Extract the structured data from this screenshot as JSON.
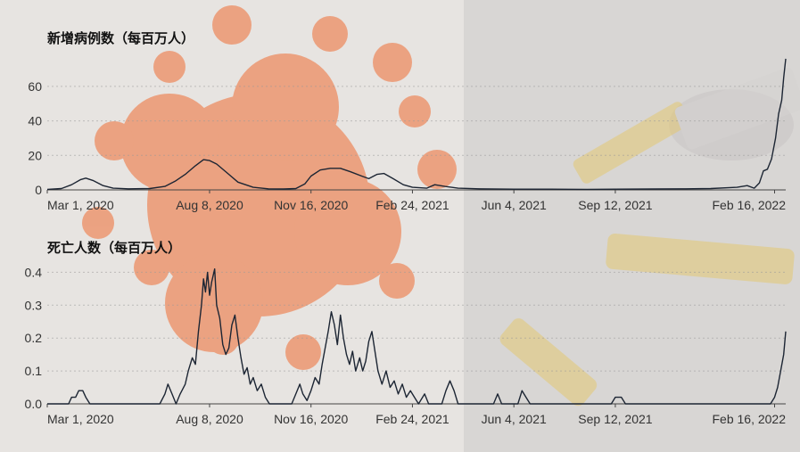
{
  "chart_data": [
    {
      "type": "line",
      "title": "新增病例数（每百万人）",
      "xlabel": "",
      "ylabel": "",
      "x_ticks": [
        "Mar 1, 2020",
        "Aug 8, 2020",
        "Nov 16, 2020",
        "Feb 24, 2021",
        "Jun 4, 2021",
        "Sep 12, 2021",
        "Feb 16, 2022"
      ],
      "y_ticks": [
        0,
        20,
        40,
        60
      ],
      "ylim": [
        0,
        78
      ],
      "grid": true,
      "x_range": [
        "2020-03-01",
        "2022-02-27"
      ],
      "series": [
        {
          "points": [
            [
              "2020-03-01",
              0.3
            ],
            [
              "2020-03-15",
              0.8
            ],
            [
              "2020-03-25",
              3.0
            ],
            [
              "2020-04-03",
              6.0
            ],
            [
              "2020-04-08",
              6.8
            ],
            [
              "2020-04-15",
              5.5
            ],
            [
              "2020-04-25",
              2.5
            ],
            [
              "2020-05-05",
              1.0
            ],
            [
              "2020-05-20",
              0.6
            ],
            [
              "2020-06-10",
              0.8
            ],
            [
              "2020-06-25",
              2.0
            ],
            [
              "2020-07-05",
              5.0
            ],
            [
              "2020-07-15",
              9.0
            ],
            [
              "2020-07-25",
              14.0
            ],
            [
              "2020-08-02",
              17.5
            ],
            [
              "2020-08-08",
              17.0
            ],
            [
              "2020-08-15",
              15.0
            ],
            [
              "2020-08-25",
              10.0
            ],
            [
              "2020-09-05",
              4.5
            ],
            [
              "2020-09-20",
              1.5
            ],
            [
              "2020-10-05",
              0.6
            ],
            [
              "2020-10-20",
              0.5
            ],
            [
              "2020-11-01",
              0.8
            ],
            [
              "2020-11-10",
              3.5
            ],
            [
              "2020-11-16",
              8.0
            ],
            [
              "2020-11-25",
              11.5
            ],
            [
              "2020-12-05",
              12.5
            ],
            [
              "2020-12-15",
              12.5
            ],
            [
              "2020-12-25",
              10.5
            ],
            [
              "2021-01-05",
              8.0
            ],
            [
              "2021-01-12",
              6.5
            ],
            [
              "2021-01-20",
              9.0
            ],
            [
              "2021-01-27",
              9.5
            ],
            [
              "2021-02-05",
              6.5
            ],
            [
              "2021-02-15",
              3.0
            ],
            [
              "2021-02-24",
              1.5
            ],
            [
              "2021-03-10",
              1.0
            ],
            [
              "2021-03-18",
              3.0
            ],
            [
              "2021-03-28",
              2.0
            ],
            [
              "2021-04-10",
              1.0
            ],
            [
              "2021-05-01",
              0.6
            ],
            [
              "2021-06-04",
              0.4
            ],
            [
              "2021-07-10",
              0.4
            ],
            [
              "2021-08-15",
              0.3
            ],
            [
              "2021-09-12",
              0.4
            ],
            [
              "2021-10-20",
              0.5
            ],
            [
              "2021-11-20",
              0.6
            ],
            [
              "2021-12-15",
              0.8
            ],
            [
              "2022-01-10",
              1.5
            ],
            [
              "2022-01-20",
              2.5
            ],
            [
              "2022-01-27",
              1.0
            ],
            [
              "2022-02-01",
              4.0
            ],
            [
              "2022-02-05",
              11.0
            ],
            [
              "2022-02-09",
              12.0
            ],
            [
              "2022-02-13",
              18.0
            ],
            [
              "2022-02-17",
              30.0
            ],
            [
              "2022-02-20",
              44.0
            ],
            [
              "2022-02-23",
              52.0
            ],
            [
              "2022-02-25",
              65.0
            ],
            [
              "2022-02-27",
              76.0
            ]
          ]
        }
      ]
    },
    {
      "type": "line",
      "title": "死亡人数（每百万人）",
      "xlabel": "",
      "ylabel": "",
      "x_ticks": [
        "Mar 1, 2020",
        "Aug 8, 2020",
        "Nov 16, 2020",
        "Feb 24, 2021",
        "Jun 4, 2021",
        "Sep 12, 2021",
        "Feb 16, 2022"
      ],
      "y_ticks": [
        0,
        0.1,
        0.2,
        0.3,
        0.4
      ],
      "ylim": [
        0,
        0.42
      ],
      "grid": true,
      "x_range": [
        "2020-03-01",
        "2022-02-27"
      ],
      "series": [
        {
          "points": [
            [
              "2020-03-01",
              0
            ],
            [
              "2020-03-22",
              0
            ],
            [
              "2020-03-25",
              0.02
            ],
            [
              "2020-03-29",
              0.02
            ],
            [
              "2020-04-01",
              0.04
            ],
            [
              "2020-04-05",
              0.04
            ],
            [
              "2020-04-08",
              0.02
            ],
            [
              "2020-04-12",
              0
            ],
            [
              "2020-06-20",
              0
            ],
            [
              "2020-06-25",
              0.03
            ],
            [
              "2020-06-28",
              0.06
            ],
            [
              "2020-07-02",
              0.03
            ],
            [
              "2020-07-06",
              0
            ],
            [
              "2020-07-10",
              0.03
            ],
            [
              "2020-07-15",
              0.06
            ],
            [
              "2020-07-18",
              0.1
            ],
            [
              "2020-07-22",
              0.14
            ],
            [
              "2020-07-25",
              0.12
            ],
            [
              "2020-07-28",
              0.22
            ],
            [
              "2020-07-31",
              0.3
            ],
            [
              "2020-08-02",
              0.38
            ],
            [
              "2020-08-04",
              0.34
            ],
            [
              "2020-08-06",
              0.4
            ],
            [
              "2020-08-08",
              0.33
            ],
            [
              "2020-08-10",
              0.37
            ],
            [
              "2020-08-13",
              0.41
            ],
            [
              "2020-08-15",
              0.3
            ],
            [
              "2020-08-18",
              0.26
            ],
            [
              "2020-08-21",
              0.18
            ],
            [
              "2020-08-24",
              0.15
            ],
            [
              "2020-08-27",
              0.17
            ],
            [
              "2020-08-30",
              0.24
            ],
            [
              "2020-09-02",
              0.27
            ],
            [
              "2020-09-05",
              0.2
            ],
            [
              "2020-09-08",
              0.14
            ],
            [
              "2020-09-11",
              0.09
            ],
            [
              "2020-09-14",
              0.11
            ],
            [
              "2020-09-17",
              0.06
            ],
            [
              "2020-09-20",
              0.08
            ],
            [
              "2020-09-24",
              0.04
            ],
            [
              "2020-09-28",
              0.06
            ],
            [
              "2020-10-02",
              0.02
            ],
            [
              "2020-10-06",
              0
            ],
            [
              "2020-10-28",
              0
            ],
            [
              "2020-11-01",
              0.03
            ],
            [
              "2020-11-05",
              0.06
            ],
            [
              "2020-11-08",
              0.03
            ],
            [
              "2020-11-12",
              0.01
            ],
            [
              "2020-11-16",
              0.04
            ],
            [
              "2020-11-20",
              0.08
            ],
            [
              "2020-11-24",
              0.06
            ],
            [
              "2020-11-27",
              0.12
            ],
            [
              "2020-11-30",
              0.17
            ],
            [
              "2020-12-03",
              0.22
            ],
            [
              "2020-12-06",
              0.28
            ],
            [
              "2020-12-09",
              0.24
            ],
            [
              "2020-12-12",
              0.18
            ],
            [
              "2020-12-15",
              0.27
            ],
            [
              "2020-12-18",
              0.2
            ],
            [
              "2020-12-21",
              0.15
            ],
            [
              "2020-12-24",
              0.12
            ],
            [
              "2020-12-27",
              0.16
            ],
            [
              "2020-12-30",
              0.1
            ],
            [
              "2021-01-03",
              0.14
            ],
            [
              "2021-01-06",
              0.1
            ],
            [
              "2021-01-09",
              0.13
            ],
            [
              "2021-01-12",
              0.19
            ],
            [
              "2021-01-15",
              0.22
            ],
            [
              "2021-01-18",
              0.16
            ],
            [
              "2021-01-21",
              0.1
            ],
            [
              "2021-01-25",
              0.06
            ],
            [
              "2021-01-29",
              0.1
            ],
            [
              "2021-02-02",
              0.05
            ],
            [
              "2021-02-06",
              0.07
            ],
            [
              "2021-02-10",
              0.03
            ],
            [
              "2021-02-14",
              0.06
            ],
            [
              "2021-02-18",
              0.02
            ],
            [
              "2021-02-22",
              0.04
            ],
            [
              "2021-02-26",
              0.02
            ],
            [
              "2021-03-02",
              0
            ],
            [
              "2021-03-08",
              0.03
            ],
            [
              "2021-03-12",
              0
            ],
            [
              "2021-03-25",
              0
            ],
            [
              "2021-03-29",
              0.04
            ],
            [
              "2021-04-02",
              0.07
            ],
            [
              "2021-04-06",
              0.04
            ],
            [
              "2021-04-10",
              0
            ],
            [
              "2021-05-15",
              0
            ],
            [
              "2021-05-19",
              0.03
            ],
            [
              "2021-05-23",
              0
            ],
            [
              "2021-06-08",
              0
            ],
            [
              "2021-06-12",
              0.04
            ],
            [
              "2021-06-16",
              0.02
            ],
            [
              "2021-06-20",
              0
            ],
            [
              "2021-09-08",
              0
            ],
            [
              "2021-09-12",
              0.02
            ],
            [
              "2021-09-18",
              0.02
            ],
            [
              "2021-09-22",
              0
            ],
            [
              "2022-02-12",
              0
            ],
            [
              "2022-02-16",
              0.02
            ],
            [
              "2022-02-19",
              0.05
            ],
            [
              "2022-02-22",
              0.1
            ],
            [
              "2022-02-25",
              0.15
            ],
            [
              "2022-02-27",
              0.22
            ]
          ]
        }
      ]
    }
  ],
  "colors": {
    "line": "#1c2533",
    "background_virus": "#e66a3a",
    "grid": "#9a9a9a"
  }
}
